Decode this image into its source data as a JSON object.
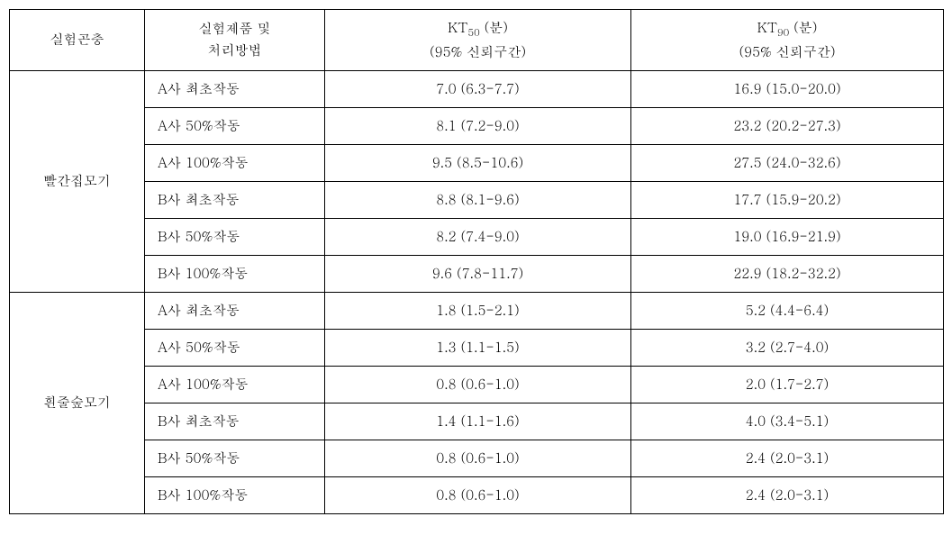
{
  "headers": {
    "insect": "실험곤충",
    "product_line1": "실험제품 및",
    "product_line2": "처리방법",
    "kt50_line1": "KT",
    "kt50_sub": "50",
    "kt50_unit": " (분)",
    "kt50_line2": "(95% 신뢰구간)",
    "kt90_line1": "KT",
    "kt90_sub": "90",
    "kt90_unit": " (분)",
    "kt90_line2": "(95% 신뢰구간)"
  },
  "groups": [
    {
      "insect": "빨간집모기",
      "rows": [
        {
          "product": "A사 최초작동",
          "kt50": "7.0 (6.3-7.7)",
          "kt90": "16.9 (15.0-20.0)"
        },
        {
          "product": "A사 50%작동",
          "kt50": "8.1 (7.2-9.0)",
          "kt90": "23.2 (20.2-27.3)"
        },
        {
          "product": "A사 100%작동",
          "kt50": "9.5 (8.5-10.6)",
          "kt90": "27.5 (24.0-32.6)"
        },
        {
          "product": "B사 최초작동",
          "kt50": "8.8 (8.1-9.6)",
          "kt90": "17.7 (15.9-20.2)"
        },
        {
          "product": "B사 50%작동",
          "kt50": "8.2 (7.4-9.0)",
          "kt90": "19.0 (16.9-21.9)"
        },
        {
          "product": "B사 100%작동",
          "kt50": "9.6 (7.8-11.7)",
          "kt90": "22.9 (18.2-32.2)"
        }
      ]
    },
    {
      "insect": "흰줄숲모기",
      "rows": [
        {
          "product": "A사 최초작동",
          "kt50": "1.8 (1.5-2.1)",
          "kt90": "5.2 (4.4-6.4)"
        },
        {
          "product": "A사 50%작동",
          "kt50": "1.3 (1.1-1.5)",
          "kt90": "3.2 (2.7-4.0)"
        },
        {
          "product": "A사 100%작동",
          "kt50": "0.8 (0.6-1.0)",
          "kt90": "2.0 (1.7-2.7)"
        },
        {
          "product": "B사 최초작동",
          "kt50": "1.4 (1.1-1.6)",
          "kt90": "4.0 (3.4-5.1)"
        },
        {
          "product": "B사 50%작동",
          "kt50": "0.8 (0.6-1.0)",
          "kt90": "2.4 (2.0-3.1)"
        },
        {
          "product": "B사 100%작동",
          "kt50": "0.8 (0.6-1.0)",
          "kt90": "2.4 (2.0-3.1)"
        }
      ]
    }
  ]
}
